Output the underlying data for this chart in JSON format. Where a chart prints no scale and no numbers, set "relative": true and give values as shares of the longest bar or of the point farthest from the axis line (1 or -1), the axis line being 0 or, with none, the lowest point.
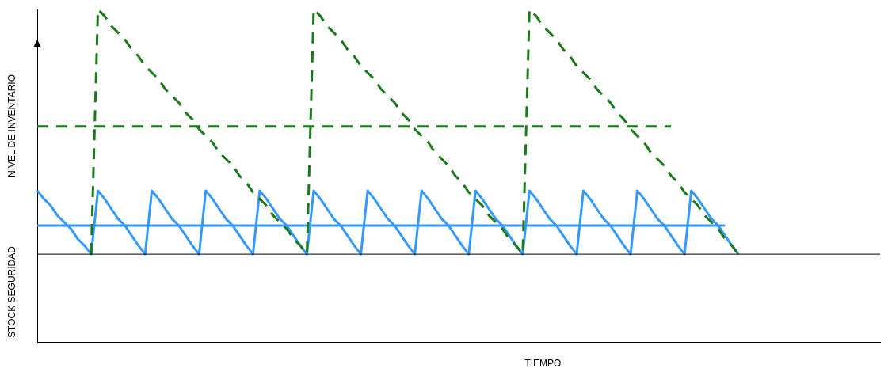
{
  "chart_data": {
    "type": "line",
    "relative": true,
    "xlabel": "TIEMPO",
    "ylabel": "NIVEL DE INVENTARIO",
    "annotations": [
      "STOCK SEGURIDAD"
    ],
    "grid": false,
    "legend": false,
    "marker": "none",
    "categories": [
      null,
      null,
      null,
      null,
      null,
      null,
      null,
      null,
      null,
      null,
      null,
      null,
      null,
      null,
      null,
      null,
      null,
      null,
      null,
      null,
      null,
      null,
      null,
      null,
      null,
      null,
      null,
      null,
      null,
      null,
      null,
      null,
      null,
      null,
      null,
      null,
      null,
      null,
      null,
      null,
      null,
      null,
      null,
      null,
      null,
      null,
      null,
      null,
      null,
      null,
      null,
      null,
      null,
      null,
      null,
      null,
      null,
      null,
      null,
      null,
      null,
      null,
      null,
      null,
      null,
      null,
      null,
      null,
      null,
      null,
      null,
      null,
      null,
      null,
      null,
      null,
      null,
      null,
      null,
      null,
      null,
      null,
      null,
      null,
      null,
      null,
      null,
      null,
      null,
      null,
      null,
      null,
      null,
      null,
      null,
      null,
      null,
      null,
      null,
      null,
      null,
      null,
      null,
      null,
      null,
      null,
      null,
      null,
      null,
      null,
      null,
      null,
      null,
      null,
      null,
      null,
      null,
      null,
      null,
      null,
      null,
      null,
      null,
      null,
      null,
      null
    ],
    "ref_lines": [
      {
        "axis": "y",
        "value": 0.264,
        "color": "#000000",
        "line_style": "solid"
      }
    ],
    "series": [
      {
        "color": "#1a7a1a",
        "line_style": "dashed",
        "values": [
          null,
          null,
          null,
          null,
          null,
          null,
          null,
          null,
          0.264,
          1,
          0.98,
          0.95,
          0.93,
          0.91,
          0.88,
          0.86,
          0.83,
          0.81,
          0.79,
          0.76,
          0.74,
          0.72,
          0.69,
          0.67,
          0.64,
          0.62,
          0.6,
          0.57,
          0.55,
          0.53,
          0.5,
          0.48,
          0.45,
          0.43,
          0.41,
          0.38,
          0.36,
          0.34,
          0.31,
          0.29,
          0.264,
          1,
          0.98,
          0.95,
          0.93,
          0.91,
          0.88,
          0.86,
          0.83,
          0.81,
          0.79,
          0.76,
          0.74,
          0.72,
          0.69,
          0.67,
          0.64,
          0.62,
          0.6,
          0.57,
          0.55,
          0.53,
          0.5,
          0.48,
          0.45,
          0.43,
          0.41,
          0.38,
          0.36,
          0.34,
          0.31,
          0.29,
          0.264,
          1,
          0.98,
          0.95,
          0.93,
          0.91,
          0.88,
          0.86,
          0.83,
          0.81,
          0.79,
          0.76,
          0.74,
          0.72,
          0.69,
          0.67,
          0.64,
          0.62,
          0.6,
          0.57,
          0.55,
          0.53,
          0.5,
          0.48,
          0.45,
          0.43,
          0.41,
          0.38,
          0.36,
          0.34,
          0.31,
          0.29,
          0.264,
          null,
          null,
          null,
          null,
          null,
          null,
          null,
          null,
          null,
          null,
          null,
          null,
          null,
          null,
          null,
          null,
          null,
          null,
          null,
          null,
          null
        ]
      },
      {
        "color": "#1a7a1a",
        "line_style": "dashed",
        "values": [
          0.648,
          0.648,
          0.648,
          0.648,
          0.648,
          0.648,
          0.648,
          0.648,
          0.648,
          0.648,
          0.648,
          0.648,
          0.648,
          0.648,
          0.648,
          0.648,
          0.648,
          0.648,
          0.648,
          0.648,
          0.648,
          0.648,
          0.648,
          0.648,
          0.648,
          0.648,
          0.648,
          0.648,
          0.648,
          0.648,
          0.648,
          0.648,
          0.648,
          0.648,
          0.648,
          0.648,
          0.648,
          0.648,
          0.648,
          0.648,
          0.648,
          0.648,
          0.648,
          0.648,
          0.648,
          0.648,
          0.648,
          0.648,
          0.648,
          0.648,
          0.648,
          0.648,
          0.648,
          0.648,
          0.648,
          0.648,
          0.648,
          0.648,
          0.648,
          0.648,
          0.648,
          0.648,
          0.648,
          0.648,
          0.648,
          0.648,
          0.648,
          0.648,
          0.648,
          0.648,
          0.648,
          0.648,
          0.648,
          0.648,
          0.648,
          0.648,
          0.648,
          0.648,
          0.648,
          0.648,
          0.648,
          0.648,
          0.648,
          0.648,
          0.648,
          0.648,
          0.648,
          0.648,
          0.648,
          0.648,
          0.648,
          0.648,
          0.648,
          0.648,
          0.648,
          null,
          null,
          null,
          null,
          null,
          null,
          null,
          null,
          null,
          null,
          null,
          null,
          null,
          null,
          null,
          null,
          null,
          null,
          null,
          null,
          null,
          null,
          null,
          null,
          null,
          null,
          null,
          null,
          null,
          null,
          null
        ]
      },
      {
        "color": "#3399ff",
        "line_style": "solid",
        "values": [
          0.455,
          0.43,
          0.41,
          0.38,
          0.36,
          0.34,
          0.31,
          0.29,
          0.264,
          0.455,
          0.43,
          0.4,
          0.37,
          0.35,
          0.32,
          0.29,
          0.264,
          0.455,
          0.43,
          0.4,
          0.37,
          0.35,
          0.32,
          0.29,
          0.264,
          0.455,
          0.43,
          0.4,
          0.37,
          0.35,
          0.32,
          0.29,
          0.264,
          0.455,
          0.43,
          0.4,
          0.37,
          0.35,
          0.32,
          0.29,
          0.264,
          0.455,
          0.43,
          0.4,
          0.37,
          0.35,
          0.32,
          0.29,
          0.264,
          0.455,
          0.43,
          0.4,
          0.37,
          0.35,
          0.32,
          0.29,
          0.264,
          0.455,
          0.43,
          0.4,
          0.37,
          0.35,
          0.32,
          0.29,
          0.264,
          0.455,
          0.43,
          0.4,
          0.37,
          0.35,
          0.32,
          0.29,
          0.264,
          0.455,
          0.43,
          0.4,
          0.37,
          0.35,
          0.32,
          0.29,
          0.264,
          0.455,
          0.43,
          0.4,
          0.37,
          0.35,
          0.32,
          0.29,
          0.264,
          0.455,
          0.43,
          0.4,
          0.37,
          0.35,
          0.32,
          0.29,
          0.264,
          0.455,
          0.43,
          0.4,
          0.37,
          0.35,
          0.32,
          0.29,
          0.264,
          null,
          null,
          null,
          null,
          null,
          null,
          null,
          null,
          null,
          null,
          null,
          null,
          null,
          null,
          null,
          null,
          null,
          null,
          null,
          null,
          null
        ]
      },
      {
        "color": "#3399ff",
        "line_style": "solid",
        "values": [
          0.35,
          0.35,
          0.35,
          0.35,
          0.35,
          0.35,
          0.35,
          0.35,
          0.35,
          0.35,
          0.35,
          0.35,
          0.35,
          0.35,
          0.35,
          0.35,
          0.35,
          0.35,
          0.35,
          0.35,
          0.35,
          0.35,
          0.35,
          0.35,
          0.35,
          0.35,
          0.35,
          0.35,
          0.35,
          0.35,
          0.35,
          0.35,
          0.35,
          0.35,
          0.35,
          0.35,
          0.35,
          0.35,
          0.35,
          0.35,
          0.35,
          0.35,
          0.35,
          0.35,
          0.35,
          0.35,
          0.35,
          0.35,
          0.35,
          0.35,
          0.35,
          0.35,
          0.35,
          0.35,
          0.35,
          0.35,
          0.35,
          0.35,
          0.35,
          0.35,
          0.35,
          0.35,
          0.35,
          0.35,
          0.35,
          0.35,
          0.35,
          0.35,
          0.35,
          0.35,
          0.35,
          0.35,
          0.35,
          0.35,
          0.35,
          0.35,
          0.35,
          0.35,
          0.35,
          0.35,
          0.35,
          0.35,
          0.35,
          0.35,
          0.35,
          0.35,
          0.35,
          0.35,
          0.35,
          0.35,
          0.35,
          0.35,
          0.35,
          0.35,
          0.35,
          0.35,
          0.35,
          0.35,
          0.35,
          0.35,
          0.35,
          0.35,
          0.35,
          null,
          null,
          null,
          null,
          null,
          null,
          null,
          null,
          null,
          null,
          null,
          null,
          null,
          null,
          null,
          null,
          null,
          null,
          null,
          null,
          null,
          null,
          null
        ]
      }
    ]
  }
}
